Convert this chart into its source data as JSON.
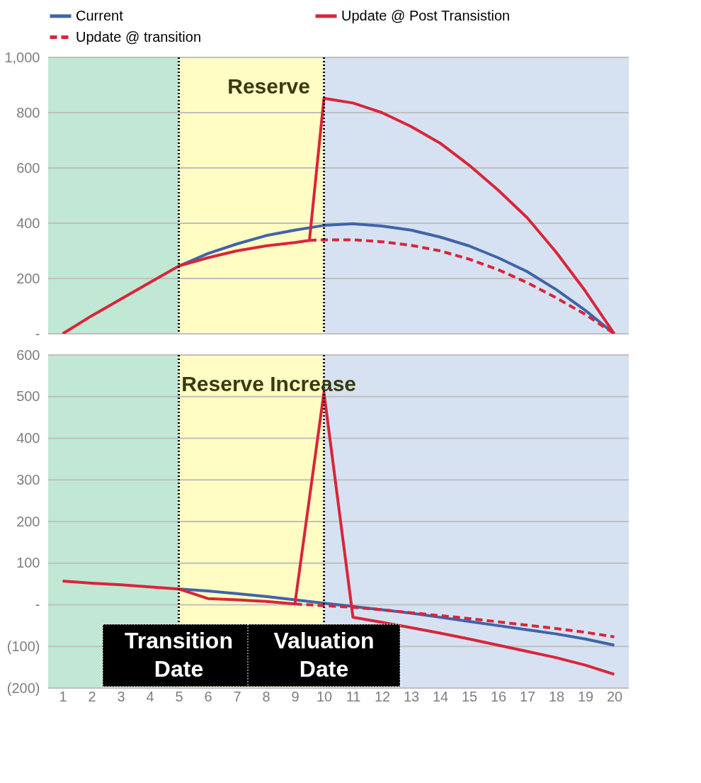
{
  "chart_data": [
    {
      "type": "line",
      "title": "Reserve",
      "legend": "top",
      "grid": "y",
      "tick_labels": "y",
      "xlim": [
        0.5,
        20.5
      ],
      "xticks": [
        1,
        2,
        3,
        4,
        5,
        6,
        7,
        8,
        9,
        10,
        11,
        12,
        13,
        14,
        15,
        16,
        17,
        18,
        19,
        20
      ],
      "ylim": [
        0,
        1000
      ],
      "yticks": [
        {
          "value": 0,
          "label": "-"
        },
        200,
        400,
        600,
        800,
        {
          "value": 1000,
          "label": "1,000"
        }
      ],
      "bands": [
        {
          "axis": "x",
          "from": 0.5,
          "to": 5,
          "color": "#c0e8d4"
        },
        {
          "axis": "x",
          "from": 5,
          "to": 10,
          "color": "#fffcc4"
        },
        {
          "axis": "x",
          "from": 10,
          "to": 20.5,
          "color": "#d6e2f2"
        }
      ],
      "ref_lines": [
        {
          "axis": "x",
          "value": 5,
          "line_style": "dotted",
          "color": "#000000"
        },
        {
          "axis": "x",
          "value": 10,
          "line_style": "dotted",
          "color": "#000000"
        }
      ],
      "series": [
        {
          "name": "Current",
          "color": "#3f64a8",
          "line_style": "solid",
          "x": [
            5,
            6,
            7,
            8,
            9,
            10,
            11,
            12,
            13,
            14,
            15,
            16,
            17,
            18,
            19,
            20
          ],
          "values": [
            245,
            290,
            325,
            355,
            375,
            392,
            398,
            390,
            375,
            350,
            318,
            275,
            225,
            160,
            85,
            0
          ]
        },
        {
          "name": "Update @ Post Transistion",
          "color": "#d9253a",
          "line_style": "solid",
          "x": [
            1,
            2,
            3,
            4,
            5,
            6,
            7,
            8,
            9,
            9.5,
            10,
            11,
            12,
            13,
            14,
            15,
            16,
            17,
            18,
            19,
            20
          ],
          "values": [
            0,
            65,
            125,
            185,
            245,
            275,
            300,
            318,
            330,
            338,
            852,
            835,
            800,
            750,
            690,
            610,
            520,
            420,
            295,
            155,
            0
          ]
        },
        {
          "name": "Update @ transition",
          "color": "#d9253a",
          "line_style": "dashed",
          "x": [
            9.5,
            10,
            11,
            12,
            13,
            14,
            15,
            16,
            17,
            18,
            19,
            20
          ],
          "values": [
            338,
            340,
            340,
            333,
            320,
            300,
            270,
            232,
            185,
            130,
            70,
            0
          ]
        }
      ]
    },
    {
      "type": "line",
      "title": "Reserve Increase",
      "grid": "y",
      "xlim": [
        0.5,
        20.5
      ],
      "xticks": [
        1,
        2,
        3,
        4,
        5,
        6,
        7,
        8,
        9,
        10,
        11,
        12,
        13,
        14,
        15,
        16,
        17,
        18,
        19,
        20
      ],
      "ylim": [
        -200,
        600
      ],
      "yticks": [
        {
          "value": -200,
          "label": "(200)"
        },
        {
          "value": -100,
          "label": "(100)"
        },
        {
          "value": 0,
          "label": "-"
        },
        100,
        200,
        300,
        400,
        500,
        600
      ],
      "bands": [
        {
          "axis": "x",
          "from": 0.5,
          "to": 5,
          "color": "#c0e8d4"
        },
        {
          "axis": "x",
          "from": 5,
          "to": 10,
          "color": "#fffcc4"
        },
        {
          "axis": "x",
          "from": 10,
          "to": 20.5,
          "color": "#d6e2f2"
        }
      ],
      "ref_lines": [
        {
          "axis": "x",
          "value": 5,
          "line_style": "dotted",
          "color": "#000000",
          "label": "Transition Date"
        },
        {
          "axis": "x",
          "value": 10,
          "line_style": "dotted",
          "color": "#000000",
          "label": "Valuation Date"
        }
      ],
      "series": [
        {
          "color": "#3f64a8",
          "line_style": "solid",
          "x": [
            5,
            6,
            7,
            8,
            9,
            10,
            11,
            12,
            13,
            14,
            15,
            16,
            17,
            18,
            19,
            20
          ],
          "values": [
            38,
            33,
            27,
            20,
            12,
            4,
            -4,
            -12,
            -20,
            -30,
            -40,
            -50,
            -60,
            -70,
            -82,
            -97
          ]
        },
        {
          "color": "#d9253a",
          "line_style": "solid",
          "x": [
            1,
            2,
            3,
            4,
            5,
            6,
            7,
            8,
            9,
            10,
            11,
            12,
            13,
            14,
            15,
            16,
            17,
            18,
            19,
            20
          ],
          "values": [
            57,
            52,
            48,
            43,
            38,
            15,
            12,
            8,
            2,
            510,
            -30,
            -42,
            -55,
            -68,
            -82,
            -97,
            -112,
            -127,
            -145,
            -167
          ]
        },
        {
          "color": "#d9253a",
          "line_style": "dashed",
          "x": [
            9,
            10,
            11,
            12,
            13,
            14,
            15,
            16,
            17,
            18,
            19,
            20
          ],
          "values": [
            2,
            -2,
            -6,
            -12,
            -19,
            -26,
            -33,
            -41,
            -49,
            -57,
            -66,
            -77
          ]
        }
      ]
    }
  ]
}
